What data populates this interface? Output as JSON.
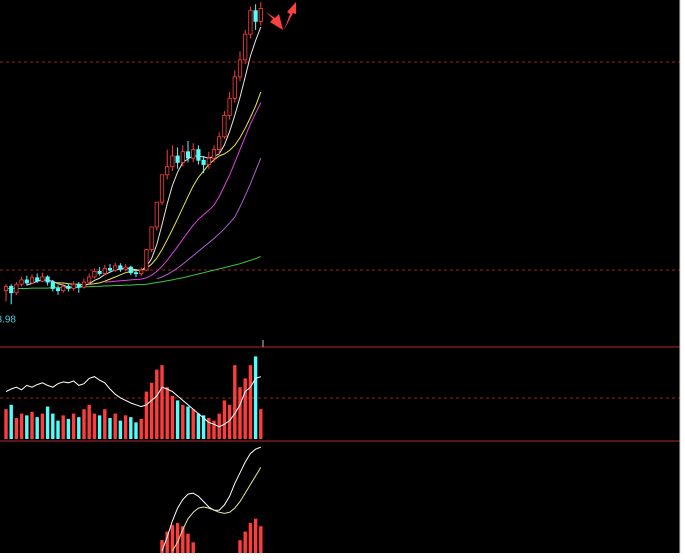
{
  "chart_data": [
    {
      "type": "candlestick",
      "label": "3.98",
      "label_color": "#54c8d8",
      "up_color": "#ff3c3c",
      "down_color": "#54fcfc",
      "ylim": [
        3.8,
        11.1
      ],
      "open": [
        4.3,
        4.4,
        4.25,
        4.45,
        4.55,
        4.48,
        4.6,
        4.52,
        4.62,
        4.5,
        4.35,
        4.3,
        4.4,
        4.35,
        4.45,
        4.38,
        4.5,
        4.62,
        4.75,
        4.7,
        4.82,
        4.78,
        4.88,
        4.8,
        4.85,
        4.72,
        4.7,
        4.78,
        5.26,
        5.79,
        6.37,
        7.01,
        7.2,
        7.45,
        7.3,
        7.55,
        7.4,
        7.6,
        7.35,
        7.25,
        7.4,
        7.6,
        7.9,
        8.4,
        8.8,
        9.3,
        9.7,
        10.3,
        10.85,
        10.6
      ],
      "close": [
        4.4,
        4.25,
        4.45,
        4.55,
        4.48,
        4.6,
        4.52,
        4.62,
        4.5,
        4.35,
        4.3,
        4.4,
        4.35,
        4.45,
        4.38,
        4.5,
        4.62,
        4.75,
        4.7,
        4.82,
        4.78,
        4.88,
        4.8,
        4.85,
        4.72,
        4.7,
        4.78,
        5.26,
        5.79,
        6.37,
        7.01,
        7.2,
        7.45,
        7.3,
        7.55,
        7.4,
        7.6,
        7.35,
        7.25,
        7.4,
        7.6,
        7.9,
        8.4,
        8.8,
        9.3,
        9.7,
        10.3,
        10.85,
        10.6,
        10.9
      ],
      "high": [
        4.45,
        4.45,
        4.5,
        4.62,
        4.65,
        4.68,
        4.7,
        4.72,
        4.66,
        4.55,
        4.42,
        4.48,
        4.46,
        4.52,
        4.5,
        4.58,
        4.7,
        4.82,
        4.85,
        4.9,
        4.92,
        4.95,
        4.94,
        4.92,
        4.88,
        4.8,
        4.84,
        5.26,
        5.79,
        6.37,
        7.01,
        7.6,
        7.7,
        7.65,
        7.7,
        7.8,
        7.75,
        7.7,
        7.45,
        7.55,
        7.7,
        8.0,
        8.5,
        8.95,
        9.45,
        9.9,
        10.4,
        10.95,
        11.0,
        11.05
      ],
      "low": [
        4.05,
        3.98,
        4.2,
        4.4,
        4.42,
        4.45,
        4.48,
        4.5,
        4.42,
        4.28,
        4.2,
        4.25,
        4.28,
        4.3,
        4.25,
        4.35,
        4.45,
        4.58,
        4.65,
        4.66,
        4.72,
        4.74,
        4.74,
        4.75,
        4.66,
        4.62,
        4.64,
        4.76,
        5.2,
        5.7,
        6.3,
        6.9,
        7.1,
        7.15,
        7.2,
        7.3,
        7.3,
        7.25,
        7.05,
        7.15,
        7.3,
        7.5,
        7.85,
        8.3,
        8.7,
        9.2,
        9.6,
        10.2,
        10.4,
        10.5
      ],
      "series": [
        {
          "color": "#e6e6e6",
          "values": [
            null,
            null,
            null,
            null,
            4.43,
            4.47,
            4.52,
            4.55,
            4.54,
            4.52,
            4.46,
            4.43,
            4.38,
            4.37,
            4.38,
            4.42,
            4.46,
            4.54,
            4.59,
            4.68,
            4.73,
            4.79,
            4.8,
            4.83,
            4.81,
            4.79,
            4.77,
            4.86,
            5.05,
            5.38,
            5.84,
            6.33,
            6.76,
            7.07,
            7.3,
            7.38,
            7.46,
            7.44,
            7.43,
            7.4,
            7.44,
            7.5,
            7.71,
            8.02,
            8.4,
            8.82,
            9.3,
            9.79,
            10.15,
            10.47
          ]
        },
        {
          "color": "#e8e84a",
          "values": [
            null,
            null,
            null,
            null,
            null,
            null,
            null,
            null,
            null,
            4.49,
            4.48,
            4.48,
            4.46,
            4.45,
            4.45,
            4.44,
            4.45,
            4.46,
            4.48,
            4.52,
            4.57,
            4.62,
            4.67,
            4.72,
            4.75,
            4.77,
            4.78,
            4.82,
            4.92,
            5.06,
            5.26,
            5.49,
            5.73,
            5.98,
            6.24,
            6.5,
            6.75,
            6.95,
            7.1,
            7.25,
            7.36,
            7.45,
            7.5,
            7.58,
            7.7,
            7.88,
            8.1,
            8.35,
            8.62,
            8.95
          ]
        },
        {
          "color": "#e040e0",
          "values": [
            null,
            null,
            null,
            null,
            null,
            null,
            null,
            null,
            null,
            null,
            null,
            null,
            null,
            null,
            null,
            null,
            null,
            null,
            null,
            4.5,
            4.51,
            4.52,
            4.53,
            4.54,
            4.55,
            4.56,
            4.57,
            4.6,
            4.66,
            4.75,
            4.87,
            5.01,
            5.17,
            5.33,
            5.5,
            5.67,
            5.83,
            5.97,
            6.08,
            6.18,
            6.3,
            6.5,
            6.75,
            7.0,
            7.3,
            7.6,
            7.9,
            8.2,
            8.45,
            8.7
          ]
        },
        {
          "color": "#b060d0",
          "values": [
            null,
            null,
            null,
            null,
            null,
            null,
            null,
            null,
            null,
            null,
            null,
            null,
            null,
            null,
            null,
            null,
            null,
            null,
            null,
            null,
            null,
            null,
            null,
            null,
            null,
            null,
            null,
            null,
            null,
            4.58,
            4.62,
            4.68,
            4.75,
            4.83,
            4.92,
            5.02,
            5.12,
            5.22,
            5.32,
            5.42,
            5.52,
            5.63,
            5.75,
            5.88,
            6.02,
            6.26,
            6.52,
            6.8,
            7.1,
            7.4
          ]
        },
        {
          "color": "#3cc83c",
          "values": [
            4.35,
            4.35,
            4.35,
            4.35,
            4.35,
            4.36,
            4.36,
            4.36,
            4.36,
            4.37,
            4.37,
            4.37,
            4.38,
            4.38,
            4.38,
            4.39,
            4.39,
            4.4,
            4.4,
            4.41,
            4.41,
            4.42,
            4.42,
            4.43,
            4.43,
            4.44,
            4.44,
            4.45,
            4.47,
            4.49,
            4.51,
            4.53,
            4.55,
            4.58,
            4.6,
            4.63,
            4.66,
            4.69,
            4.72,
            4.75,
            4.78,
            4.81,
            4.84,
            4.87,
            4.9,
            4.93,
            4.97,
            5.01,
            5.05,
            5.1
          ]
        }
      ]
    },
    {
      "type": "bar",
      "ylim": [
        0,
        100
      ],
      "values": [
        35,
        40,
        25,
        30,
        28,
        32,
        26,
        30,
        38,
        30,
        22,
        28,
        24,
        30,
        26,
        35,
        40,
        30,
        28,
        35,
        25,
        30,
        22,
        28,
        26,
        20,
        24,
        55,
        65,
        80,
        85,
        60,
        50,
        45,
        40,
        38,
        35,
        30,
        28,
        25,
        22,
        30,
        45,
        40,
        85,
        60,
        70,
        85,
        95,
        35
      ],
      "series": [
        {
          "color": "#ffffff",
          "values": [
            55,
            58,
            60,
            57,
            62,
            60,
            63,
            65,
            62,
            60,
            64,
            66,
            65,
            67,
            62,
            64,
            70,
            72,
            68,
            65,
            58,
            52,
            48,
            45,
            42,
            40,
            38,
            40,
            45,
            50,
            60,
            58,
            55,
            50,
            45,
            40,
            35,
            30,
            25,
            20,
            18,
            15,
            18,
            22,
            30,
            40,
            55,
            60,
            70,
            72
          ]
        }
      ]
    },
    {
      "type": "bar",
      "ylim": [
        0,
        1.0
      ],
      "color": "#ff3c3c",
      "values": [
        null,
        null,
        null,
        null,
        null,
        null,
        null,
        null,
        null,
        null,
        null,
        null,
        null,
        null,
        null,
        null,
        null,
        null,
        null,
        null,
        null,
        null,
        null,
        null,
        null,
        null,
        null,
        null,
        null,
        null,
        0.12,
        0.2,
        0.26,
        0.28,
        0.25,
        0.18,
        0.1,
        null,
        null,
        null,
        null,
        null,
        null,
        null,
        null,
        0.12,
        0.2,
        0.28,
        0.32,
        0.25
      ],
      "series": [
        {
          "color": "#ffffff",
          "values": [
            null,
            null,
            null,
            null,
            null,
            null,
            null,
            null,
            null,
            null,
            null,
            null,
            null,
            null,
            null,
            null,
            null,
            null,
            null,
            null,
            null,
            null,
            null,
            null,
            null,
            null,
            null,
            null,
            null,
            null,
            0.02,
            0.15,
            0.3,
            0.42,
            0.5,
            0.55,
            0.56,
            0.53,
            0.48,
            0.43,
            0.4,
            0.4,
            0.45,
            0.53,
            0.65,
            0.75,
            0.85,
            0.93,
            0.97,
            0.99
          ]
        },
        {
          "color": "#e6e6a0",
          "values": [
            null,
            null,
            null,
            null,
            null,
            null,
            null,
            null,
            null,
            null,
            null,
            null,
            null,
            null,
            null,
            null,
            null,
            null,
            null,
            null,
            null,
            null,
            null,
            null,
            null,
            null,
            null,
            null,
            null,
            null,
            null,
            null,
            0.02,
            0.1,
            0.22,
            0.32,
            0.38,
            0.42,
            0.43,
            0.42,
            0.4,
            0.38,
            0.37,
            0.38,
            0.42,
            0.48,
            0.56,
            0.64,
            0.72,
            0.8
          ]
        }
      ]
    }
  ]
}
